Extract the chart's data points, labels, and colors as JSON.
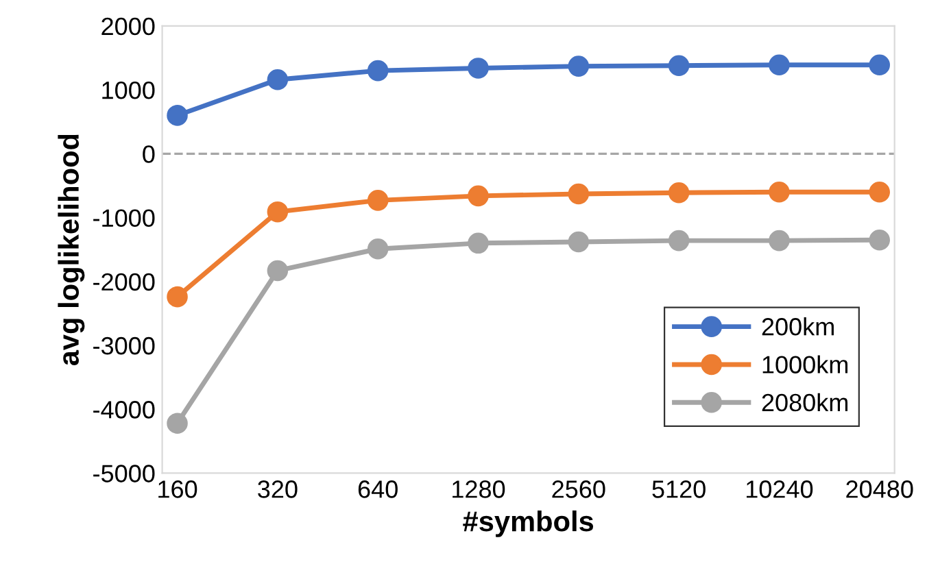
{
  "chart_data": {
    "type": "line",
    "xlabel": "#symbols",
    "ylabel": "avg loglikelihood",
    "categories": [
      "160",
      "320",
      "640",
      "1280",
      "2560",
      "5120",
      "10240",
      "20480"
    ],
    "series": [
      {
        "name": "200km",
        "color": "#4472c4",
        "values": [
          600,
          1160,
          1300,
          1340,
          1370,
          1380,
          1390,
          1390
        ]
      },
      {
        "name": "1000km",
        "color": "#ed7d31",
        "values": [
          -2240,
          -910,
          -730,
          -660,
          -630,
          -610,
          -600,
          -600
        ]
      },
      {
        "name": "2080km",
        "color": "#a5a5a5",
        "values": [
          -4220,
          -1830,
          -1490,
          -1400,
          -1380,
          -1360,
          -1360,
          -1350
        ]
      }
    ],
    "ylim": [
      -5000,
      2000
    ],
    "yticks": [
      -5000,
      -4000,
      -3000,
      -2000,
      -1000,
      0,
      1000,
      2000
    ],
    "ref_lines": [
      {
        "axis": "y",
        "value": 0,
        "color": "#a6a6a6",
        "line_style": "dashed"
      }
    ],
    "grid": false,
    "legend": "bottom right",
    "marker": "circle",
    "line_style": "solid"
  }
}
